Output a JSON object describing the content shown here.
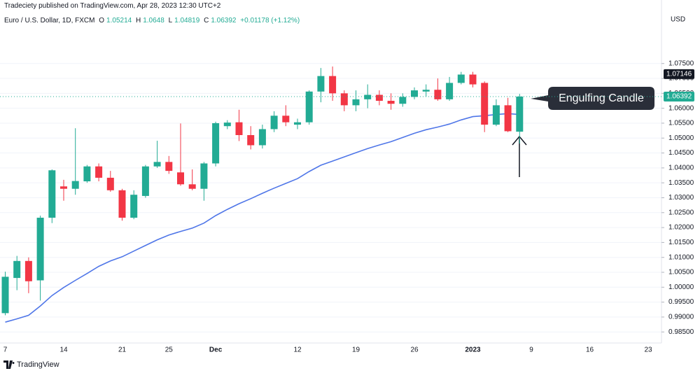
{
  "chart_data": {
    "type": "candlestick",
    "publisher": "Tradeciety published on TradingView.com, Apr 28, 2023 12:30 UTC+2",
    "title": "Euro / U.S. Dollar, 1D, FXCM",
    "ohlc_labels": [
      "O",
      "H",
      "L",
      "C"
    ],
    "change_label": "+0.01178 (+1.12%)",
    "currency": "USD",
    "annotation": "Engulfing Candle",
    "footer": "TradingView",
    "up_color": "#22ab94",
    "down_color": "#f23645",
    "grid": true,
    "categories": [
      "7",
      null,
      null,
      null,
      null,
      "14",
      null,
      null,
      null,
      null,
      "21",
      null,
      null,
      null,
      "25",
      null,
      null,
      null,
      "Dec",
      null,
      null,
      null,
      null,
      null,
      null,
      "12",
      null,
      null,
      null,
      null,
      "19",
      null,
      null,
      null,
      null,
      "26",
      null,
      null,
      null,
      null,
      "2023",
      null,
      null,
      null,
      null,
      "9",
      null,
      null,
      null,
      null,
      "16",
      null,
      null,
      null,
      null,
      "23",
      null
    ],
    "open": [
      0.9913,
      1.0031,
      1.0088,
      1.0023,
      1.0233,
      1.0338,
      1.033,
      1.0355,
      1.0405,
      1.0367,
      1.0325,
      1.0233,
      1.0306,
      1.0405,
      1.042,
      1.0385,
      1.0345,
      1.033,
      1.0415,
      1.054,
      1.0553,
      1.051,
      1.0476,
      1.053,
      1.0575,
      1.0545,
      1.0553,
      1.0656,
      1.0708,
      1.065,
      1.061,
      1.063,
      1.0645,
      1.0625,
      1.0615,
      1.0638,
      1.0656,
      1.0662,
      1.063,
      1.0685,
      1.0713,
      1.0685,
      1.0545,
      1.061,
      1.05214,
      null,
      null,
      null,
      null,
      null,
      null,
      null,
      null,
      null,
      null,
      null,
      null
    ],
    "high": [
      1.0052,
      1.0105,
      1.01,
      1.024,
      1.0395,
      1.036,
      1.0533,
      1.041,
      1.0415,
      1.039,
      1.033,
      1.0325,
      1.041,
      1.0491,
      1.044,
      1.0549,
      1.0395,
      1.042,
      1.0555,
      1.056,
      1.0595,
      1.054,
      1.0545,
      1.059,
      1.061,
      1.0565,
      1.066,
      1.0735,
      1.074,
      1.066,
      1.066,
      1.068,
      1.066,
      1.065,
      1.065,
      1.067,
      1.068,
      1.07,
      1.0705,
      1.0722,
      1.0722,
      1.069,
      1.063,
      1.0635,
      1.0648,
      null,
      null,
      null,
      null,
      null,
      null,
      null,
      null,
      null,
      null,
      null,
      null
    ],
    "low": [
      0.9906,
      0.999,
      0.998,
      0.9955,
      1.0215,
      1.029,
      1.031,
      1.035,
      1.0355,
      1.032,
      1.0223,
      1.0228,
      1.03,
      1.04,
      1.038,
      1.034,
      1.0325,
      1.029,
      1.0405,
      1.053,
      1.049,
      1.0462,
      1.0465,
      1.052,
      1.054,
      1.053,
      1.0545,
      1.062,
      1.0625,
      1.059,
      1.059,
      1.06,
      1.061,
      1.0595,
      1.0605,
      1.063,
      1.064,
      1.0625,
      1.0625,
      1.068,
      1.067,
      1.052,
      1.054,
      1.052,
      1.04819,
      null,
      null,
      null,
      null,
      null,
      null,
      null,
      null,
      null,
      null,
      null,
      null
    ],
    "close": [
      1.0035,
      1.0088,
      1.002,
      1.0233,
      1.0392,
      1.033,
      1.0356,
      1.0405,
      1.0367,
      1.0325,
      1.0233,
      1.031,
      1.0405,
      1.042,
      1.039,
      1.0345,
      1.033,
      1.0415,
      1.055,
      1.0552,
      1.051,
      1.0476,
      1.053,
      1.0575,
      1.0553,
      1.0553,
      1.0656,
      1.0708,
      1.065,
      1.061,
      1.063,
      1.0645,
      1.0625,
      1.0615,
      1.0638,
      1.066,
      1.0662,
      1.063,
      1.0685,
      1.0713,
      1.068,
      1.0545,
      1.061,
      1.0523,
      1.06392,
      null,
      null,
      null,
      null,
      null,
      null,
      null,
      null,
      null,
      null,
      null,
      null
    ],
    "ma": {
      "color": "#4f76e8",
      "values": [
        0.9883,
        0.9894,
        0.9906,
        0.9937,
        0.9972,
        0.9999,
        1.0023,
        1.0046,
        1.007,
        1.0088,
        1.0102,
        1.0121,
        1.014,
        1.0159,
        1.0175,
        1.0187,
        1.0198,
        1.0215,
        1.024,
        1.0261,
        1.028,
        1.0297,
        1.0315,
        1.0332,
        1.0348,
        1.0364,
        1.0388,
        1.0409,
        1.0423,
        1.0437,
        1.0451,
        1.0465,
        1.0477,
        1.0488,
        1.0502,
        1.0516,
        1.0528,
        1.0537,
        1.0547,
        1.0561,
        1.0572,
        1.0575,
        1.0579,
        1.0582,
        1.0579,
        null,
        null,
        null,
        null,
        null,
        null,
        null,
        null,
        null,
        null,
        null,
        null
      ]
    },
    "marked_price": 1.07146,
    "last_price": 1.06392,
    "ylim": [
      0.982,
      1.0916
    ],
    "yticks": [
      {
        "value": 0.985,
        "label": "0.98500"
      },
      {
        "value": 0.99,
        "label": "0.99000"
      },
      {
        "value": 0.995,
        "label": "0.99500"
      },
      {
        "value": 1.0,
        "label": "1.00000"
      },
      {
        "value": 1.005,
        "label": "1.00500"
      },
      {
        "value": 1.01,
        "label": "1.01000"
      },
      {
        "value": 1.015,
        "label": "1.01500"
      },
      {
        "value": 1.02,
        "label": "1.02000"
      },
      {
        "value": 1.025,
        "label": "1.02500"
      },
      {
        "value": 1.03,
        "label": "1.03000"
      },
      {
        "value": 1.035,
        "label": "1.03500"
      },
      {
        "value": 1.04,
        "label": "1.04000"
      },
      {
        "value": 1.045,
        "label": "1.04500"
      },
      {
        "value": 1.05,
        "label": "1.05000"
      },
      {
        "value": 1.055,
        "label": "1.05500"
      },
      {
        "value": 1.06,
        "label": "1.06000"
      },
      {
        "value": 1.065,
        "label": "1.06500"
      },
      {
        "value": 1.07,
        "label": "1.07000"
      },
      {
        "value": 1.075,
        "label": "1.07500"
      }
    ]
  }
}
